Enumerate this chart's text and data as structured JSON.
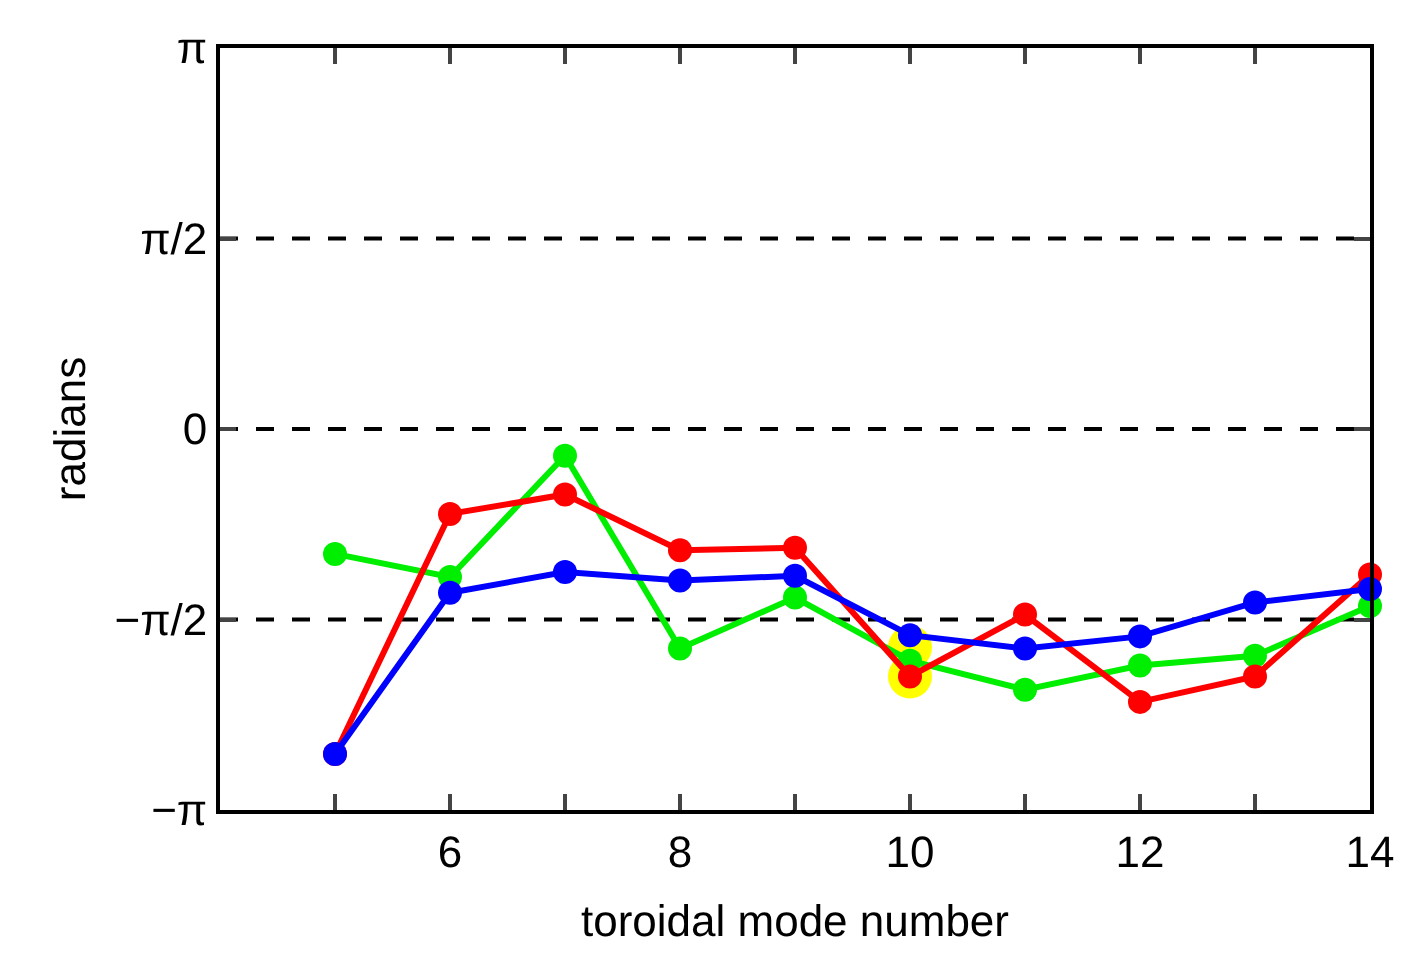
{
  "chart_data": {
    "type": "line",
    "xlabel": "toroidal mode number",
    "ylabel": "radians",
    "x": [
      5,
      6,
      7,
      8,
      9,
      10,
      11,
      12,
      13,
      14
    ],
    "series": [
      {
        "type": "scatter",
        "color": "#ffff00",
        "x": [
          10,
          10
        ],
        "values": [
          -1.8,
          -2.04
        ]
      },
      {
        "color": "#00ee00",
        "values": [
          -1.03,
          -1.22,
          -0.22,
          -1.81,
          -1.39,
          -1.91,
          -2.15,
          -1.95,
          -1.87,
          -1.46
        ]
      },
      {
        "color": "#ff0000",
        "values": [
          -2.68,
          -0.7,
          -0.54,
          -1.0,
          -0.98,
          -2.04,
          -1.53,
          -2.25,
          -2.04,
          -1.2
        ]
      },
      {
        "color": "#0000ff",
        "values": [
          -2.68,
          -1.35,
          -1.18,
          -1.25,
          -1.21,
          -1.7,
          -1.81,
          -1.71,
          -1.43,
          -1.32
        ]
      }
    ],
    "xlim": [
      4,
      14
    ],
    "xticks": [
      {
        "value": 5,
        "label": null
      },
      6,
      {
        "value": 7,
        "label": null
      },
      8,
      {
        "value": 9,
        "label": null
      },
      10,
      {
        "value": 11,
        "label": null
      },
      12,
      {
        "value": 13,
        "label": null
      },
      14
    ],
    "ylim": [
      -3.14159,
      3.14159
    ],
    "yticks": [
      {
        "value": -3.14159,
        "label": "−π"
      },
      {
        "value": -1.5708,
        "label": "−π/2"
      },
      {
        "value": 0,
        "label": "0"
      },
      {
        "value": 1.5708,
        "label": "π/2"
      },
      {
        "value": 3.14159,
        "label": "π"
      }
    ],
    "ref_lines": [
      {
        "axis": "y",
        "value": 1.5708,
        "color": "#000000",
        "line_style": "dashed"
      },
      {
        "axis": "y",
        "value": 0,
        "color": "#000000",
        "line_style": "dashed"
      },
      {
        "axis": "y",
        "value": -1.5708,
        "color": "#000000",
        "line_style": "dashed"
      }
    ],
    "marker": "circle",
    "line_style": "solid",
    "grid": false
  }
}
